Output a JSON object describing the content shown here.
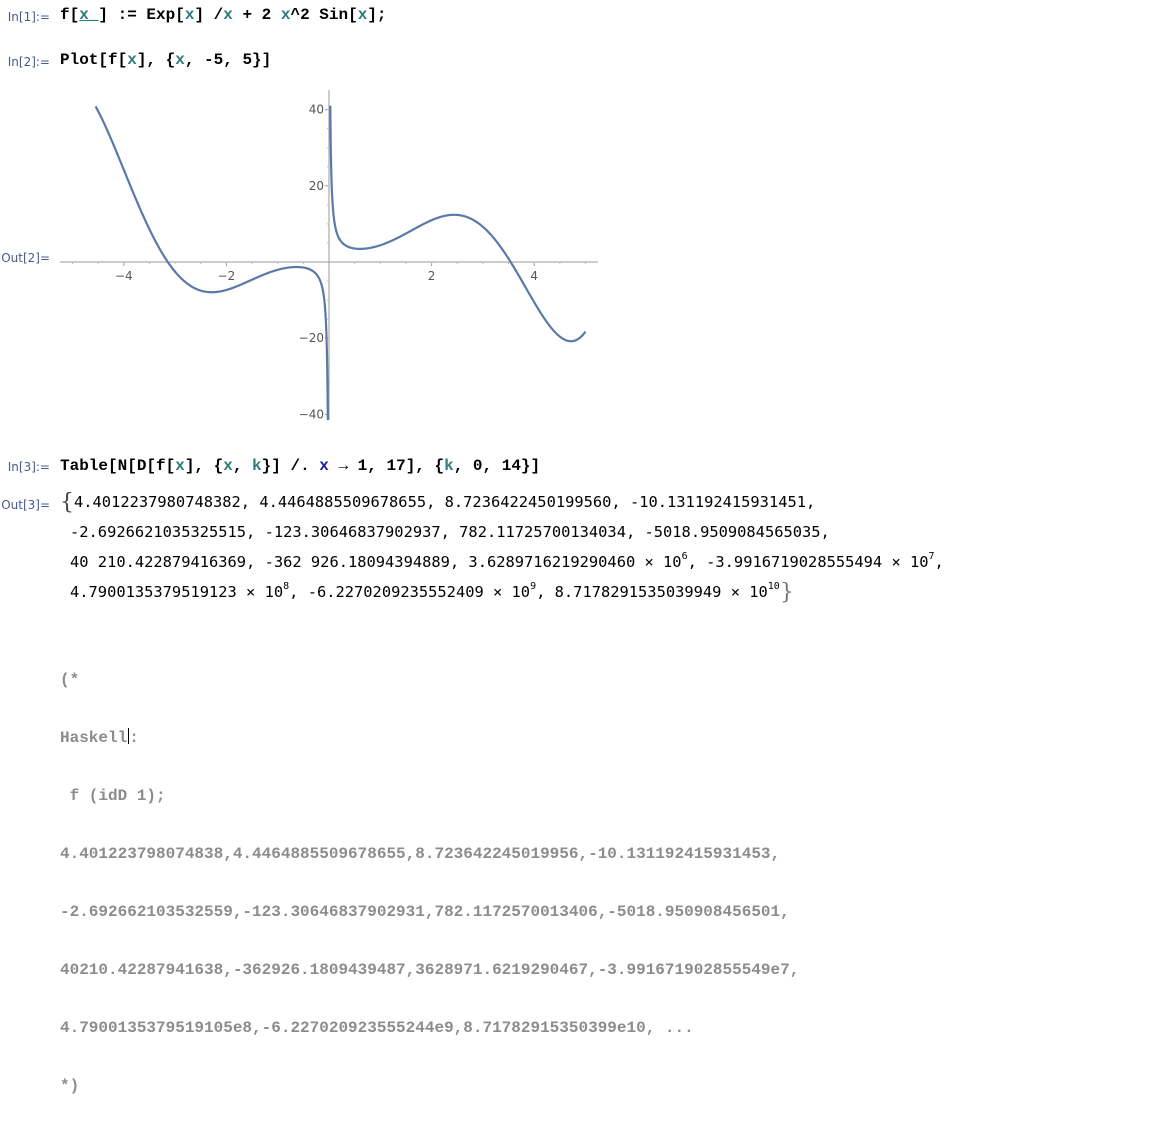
{
  "labels": {
    "in1": "In[1]:=",
    "in2": "In[2]:=",
    "out2": "Out[2]=",
    "in3": "In[3]:=",
    "out3": "Out[3]="
  },
  "in1": {
    "f": "f[",
    "x_": "x_",
    "def": "] := Exp[",
    "x1": "x",
    "div": "] /",
    "x2": "x",
    "plus": " + 2 ",
    "x3": "x",
    "sin": "^2 Sin[",
    "x4": "x",
    "end": "];"
  },
  "in2": {
    "plot": "Plot[f[",
    "x1": "x",
    "mid": "], {",
    "x2": "x",
    "range": ", -5, 5}]"
  },
  "in3": {
    "head": "Table[N[D[f[",
    "x1": "x",
    "mid": "], {",
    "x2": "x",
    "comma": ", ",
    "k1": "k",
    "rule": "}] /. ",
    "x3": "x",
    "arrow": " → 1, 17], {",
    "k2": "k",
    "range": ", 0, 14}]"
  },
  "out3": {
    "open": "{",
    "line1": "4.4012237980748382, 4.4464885509678655, 8.7236422450199560, -10.131192415931451,",
    "line2": "-2.6926621035325515, -123.30646837902937, 782.11725700134034, -5018.9509084565035,",
    "line3a": "40 210.422879416369, -362 926.18094394889, 3.6289716219290460 × 10",
    "line3a_exp": "6",
    "line3b": ", -3.9916719028555494 × 10",
    "line3b_exp": "7",
    "line3c": ",",
    "line4a": "4.7900135379519123 × 10",
    "line4a_exp": "8",
    "line4b": ", -6.2270209235552409 × 10",
    "line4b_exp": "9",
    "line4c": ", 8.7178291535039949 × 10",
    "line4c_exp": "10",
    "close": "}"
  },
  "comment": {
    "open": "(*",
    "haskell_a": "Haskell",
    "haskell_b": ":",
    "call": " f (idD 1);",
    "line1": "4.401223798074838,4.4464885509678655,8.723642245019956,-10.131192415931453,",
    "line2": "-2.692662103532559,-123.30646837902931,782.1172570013406,-5018.950908456501,",
    "line3": "40210.42287941638,-362926.1809439487,3628971.6219290467,-3.991671902855549e7,",
    "line4": "4.7900135379519105e8,-6.227020923555244e9,8.71782915350399e10, ...",
    "close": "*)"
  },
  "chart_data": {
    "type": "line",
    "function": "f(x) = Exp[x]/x + 2 x^2 Sin[x]",
    "xlim": [
      -5,
      5
    ],
    "ylim": [
      -40,
      40
    ],
    "x_ticks": [
      "-4",
      "-2",
      "2",
      "4"
    ],
    "y_ticks": [
      "40",
      "20",
      "-20",
      "-40"
    ],
    "color": "#5b79a8",
    "axis_color": "#999999"
  }
}
